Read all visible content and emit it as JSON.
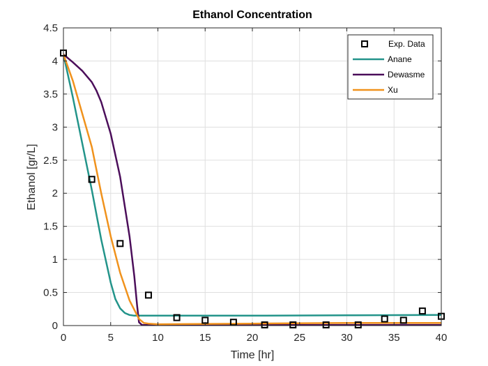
{
  "chart_data": {
    "type": "line",
    "title": "Ethanol Concentration",
    "xlabel": "Time [hr]",
    "ylabel": "Ethanol [gr/L]",
    "xlim": [
      0,
      40
    ],
    "ylim": [
      0,
      4.5
    ],
    "xticks": [
      "0",
      "5",
      "10",
      "15",
      "20",
      "25",
      "30",
      "35",
      "40"
    ],
    "yticks": [
      "0",
      "0.5",
      "1",
      "1.5",
      "2",
      "2.5",
      "3",
      "3.5",
      "4",
      "4.5"
    ],
    "grid": true,
    "legend_position": "top-right",
    "scatter": {
      "name": "Exp. Data",
      "marker": "square",
      "color": "#000000",
      "points": [
        {
          "x": 0,
          "y": 4.12
        },
        {
          "x": 3,
          "y": 2.21
        },
        {
          "x": 6,
          "y": 1.24
        },
        {
          "x": 9,
          "y": 0.46
        },
        {
          "x": 12,
          "y": 0.12
        },
        {
          "x": 15,
          "y": 0.08
        },
        {
          "x": 18,
          "y": 0.05
        },
        {
          "x": 21.3,
          "y": 0.01
        },
        {
          "x": 24.3,
          "y": 0.01
        },
        {
          "x": 27.8,
          "y": 0.01
        },
        {
          "x": 31.2,
          "y": 0.01
        },
        {
          "x": 34,
          "y": 0.1
        },
        {
          "x": 36,
          "y": 0.08
        },
        {
          "x": 38,
          "y": 0.22
        },
        {
          "x": 40,
          "y": 0.14
        }
      ]
    },
    "series": [
      {
        "name": "Anane",
        "color": "#23948a",
        "points": [
          [
            0,
            4.1
          ],
          [
            1,
            3.45
          ],
          [
            2,
            2.75
          ],
          [
            3,
            2.05
          ],
          [
            4,
            1.3
          ],
          [
            5,
            0.65
          ],
          [
            5.5,
            0.4
          ],
          [
            6,
            0.26
          ],
          [
            6.5,
            0.19
          ],
          [
            7,
            0.16
          ],
          [
            7.5,
            0.15
          ],
          [
            8,
            0.15
          ],
          [
            10,
            0.15
          ],
          [
            20,
            0.15
          ],
          [
            30,
            0.155
          ],
          [
            40,
            0.16
          ]
        ]
      },
      {
        "name": "Dewasme",
        "color": "#4b0e5a",
        "points": [
          [
            0,
            4.1
          ],
          [
            1,
            3.98
          ],
          [
            2,
            3.85
          ],
          [
            3,
            3.68
          ],
          [
            3.5,
            3.55
          ],
          [
            4,
            3.38
          ],
          [
            5,
            2.9
          ],
          [
            6,
            2.25
          ],
          [
            7,
            1.35
          ],
          [
            7.5,
            0.75
          ],
          [
            7.8,
            0.3
          ],
          [
            8,
            0.05
          ],
          [
            8.3,
            0.01
          ],
          [
            10,
            0.01
          ],
          [
            20,
            0.01
          ],
          [
            40,
            0.01
          ]
        ]
      },
      {
        "name": "Xu",
        "color": "#f0921c",
        "points": [
          [
            0,
            4.1
          ],
          [
            1,
            3.7
          ],
          [
            2,
            3.2
          ],
          [
            3,
            2.7
          ],
          [
            4,
            2.0
          ],
          [
            5,
            1.35
          ],
          [
            6,
            0.8
          ],
          [
            7,
            0.38
          ],
          [
            8,
            0.1
          ],
          [
            8.5,
            0.04
          ],
          [
            9,
            0.03
          ],
          [
            10,
            0.02
          ],
          [
            20,
            0.03
          ],
          [
            30,
            0.04
          ],
          [
            40,
            0.04
          ]
        ]
      }
    ]
  }
}
